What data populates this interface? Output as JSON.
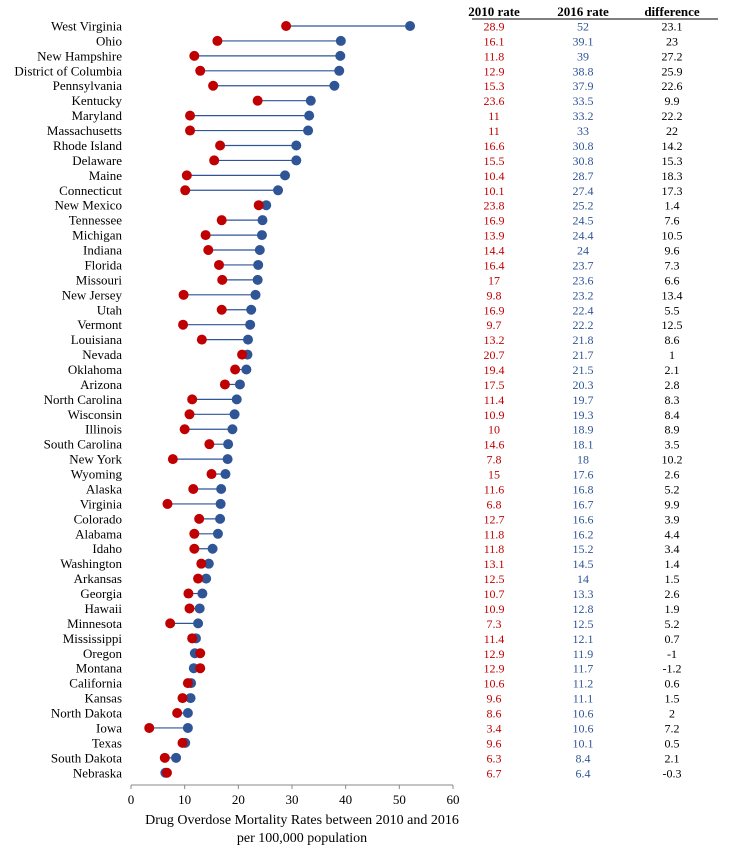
{
  "chart_data": {
    "type": "dumbbell",
    "xlabel_line1": "Drug Overdose Mortality Rates between 2010 and 2016",
    "xlabel_line2": "per 100,000 population",
    "xlim": [
      0,
      60
    ],
    "xticks": [
      "0",
      "10",
      "20",
      "30",
      "40",
      "50",
      "60"
    ],
    "column_headers": {
      "rate2010": "2010 rate",
      "rate2016": "2016 rate",
      "difference": "difference"
    },
    "colors": {
      "rate2010": "#c00000",
      "rate2016": "#2f5597",
      "line": "#2f5597",
      "text_default": "#000000"
    },
    "rows": [
      {
        "state": "West Virginia",
        "r2010": "28.9",
        "r2016": "52",
        "diff": "23.1"
      },
      {
        "state": "Ohio",
        "r2010": "16.1",
        "r2016": "39.1",
        "diff": "23"
      },
      {
        "state": "New Hampshire",
        "r2010": "11.8",
        "r2016": "39",
        "diff": "27.2"
      },
      {
        "state": "District of Columbia",
        "r2010": "12.9",
        "r2016": "38.8",
        "diff": "25.9"
      },
      {
        "state": "Pennsylvania",
        "r2010": "15.3",
        "r2016": "37.9",
        "diff": "22.6"
      },
      {
        "state": "Kentucky",
        "r2010": "23.6",
        "r2016": "33.5",
        "diff": "9.9"
      },
      {
        "state": "Maryland",
        "r2010": "11",
        "r2016": "33.2",
        "diff": "22.2"
      },
      {
        "state": "Massachusetts",
        "r2010": "11",
        "r2016": "33",
        "diff": "22"
      },
      {
        "state": "Rhode Island",
        "r2010": "16.6",
        "r2016": "30.8",
        "diff": "14.2"
      },
      {
        "state": "Delaware",
        "r2010": "15.5",
        "r2016": "30.8",
        "diff": "15.3"
      },
      {
        "state": "Maine",
        "r2010": "10.4",
        "r2016": "28.7",
        "diff": "18.3"
      },
      {
        "state": "Connecticut",
        "r2010": "10.1",
        "r2016": "27.4",
        "diff": "17.3"
      },
      {
        "state": "New Mexico",
        "r2010": "23.8",
        "r2016": "25.2",
        "diff": "1.4"
      },
      {
        "state": "Tennessee",
        "r2010": "16.9",
        "r2016": "24.5",
        "diff": "7.6"
      },
      {
        "state": "Michigan",
        "r2010": "13.9",
        "r2016": "24.4",
        "diff": "10.5"
      },
      {
        "state": "Indiana",
        "r2010": "14.4",
        "r2016": "24",
        "diff": "9.6"
      },
      {
        "state": "Florida",
        "r2010": "16.4",
        "r2016": "23.7",
        "diff": "7.3"
      },
      {
        "state": "Missouri",
        "r2010": "17",
        "r2016": "23.6",
        "diff": "6.6"
      },
      {
        "state": "New Jersey",
        "r2010": "9.8",
        "r2016": "23.2",
        "diff": "13.4"
      },
      {
        "state": "Utah",
        "r2010": "16.9",
        "r2016": "22.4",
        "diff": "5.5"
      },
      {
        "state": "Vermont",
        "r2010": "9.7",
        "r2016": "22.2",
        "diff": "12.5"
      },
      {
        "state": "Louisiana",
        "r2010": "13.2",
        "r2016": "21.8",
        "diff": "8.6"
      },
      {
        "state": "Nevada",
        "r2010": "20.7",
        "r2016": "21.7",
        "diff": "1"
      },
      {
        "state": "Oklahoma",
        "r2010": "19.4",
        "r2016": "21.5",
        "diff": "2.1"
      },
      {
        "state": "Arizona",
        "r2010": "17.5",
        "r2016": "20.3",
        "diff": "2.8"
      },
      {
        "state": "North Carolina",
        "r2010": "11.4",
        "r2016": "19.7",
        "diff": "8.3"
      },
      {
        "state": "Wisconsin",
        "r2010": "10.9",
        "r2016": "19.3",
        "diff": "8.4"
      },
      {
        "state": "Illinois",
        "r2010": "10",
        "r2016": "18.9",
        "diff": "8.9"
      },
      {
        "state": "South Carolina",
        "r2010": "14.6",
        "r2016": "18.1",
        "diff": "3.5"
      },
      {
        "state": "New York",
        "r2010": "7.8",
        "r2016": "18",
        "diff": "10.2"
      },
      {
        "state": "Wyoming",
        "r2010": "15",
        "r2016": "17.6",
        "diff": "2.6"
      },
      {
        "state": "Alaska",
        "r2010": "11.6",
        "r2016": "16.8",
        "diff": "5.2"
      },
      {
        "state": "Virginia",
        "r2010": "6.8",
        "r2016": "16.7",
        "diff": "9.9"
      },
      {
        "state": "Colorado",
        "r2010": "12.7",
        "r2016": "16.6",
        "diff": "3.9"
      },
      {
        "state": "Alabama",
        "r2010": "11.8",
        "r2016": "16.2",
        "diff": "4.4"
      },
      {
        "state": "Idaho",
        "r2010": "11.8",
        "r2016": "15.2",
        "diff": "3.4"
      },
      {
        "state": "Washington",
        "r2010": "13.1",
        "r2016": "14.5",
        "diff": "1.4"
      },
      {
        "state": "Arkansas",
        "r2010": "12.5",
        "r2016": "14",
        "diff": "1.5"
      },
      {
        "state": "Georgia",
        "r2010": "10.7",
        "r2016": "13.3",
        "diff": "2.6"
      },
      {
        "state": "Hawaii",
        "r2010": "10.9",
        "r2016": "12.8",
        "diff": "1.9"
      },
      {
        "state": "Minnesota",
        "r2010": "7.3",
        "r2016": "12.5",
        "diff": "5.2"
      },
      {
        "state": "Mississippi",
        "r2010": "11.4",
        "r2016": "12.1",
        "diff": "0.7"
      },
      {
        "state": "Oregon",
        "r2010": "12.9",
        "r2016": "11.9",
        "diff": "-1"
      },
      {
        "state": "Montana",
        "r2010": "12.9",
        "r2016": "11.7",
        "diff": "-1.2"
      },
      {
        "state": "California",
        "r2010": "10.6",
        "r2016": "11.2",
        "diff": "0.6"
      },
      {
        "state": "Kansas",
        "r2010": "9.6",
        "r2016": "11.1",
        "diff": "1.5"
      },
      {
        "state": "North Dakota",
        "r2010": "8.6",
        "r2016": "10.6",
        "diff": "2"
      },
      {
        "state": "Iowa",
        "r2010": "3.4",
        "r2016": "10.6",
        "diff": "7.2"
      },
      {
        "state": "Texas",
        "r2010": "9.6",
        "r2016": "10.1",
        "diff": "0.5"
      },
      {
        "state": "South Dakota",
        "r2010": "6.3",
        "r2016": "8.4",
        "diff": "2.1"
      },
      {
        "state": "Nebraska",
        "r2010": "6.7",
        "r2016": "6.4",
        "diff": "-0.3"
      }
    ]
  }
}
